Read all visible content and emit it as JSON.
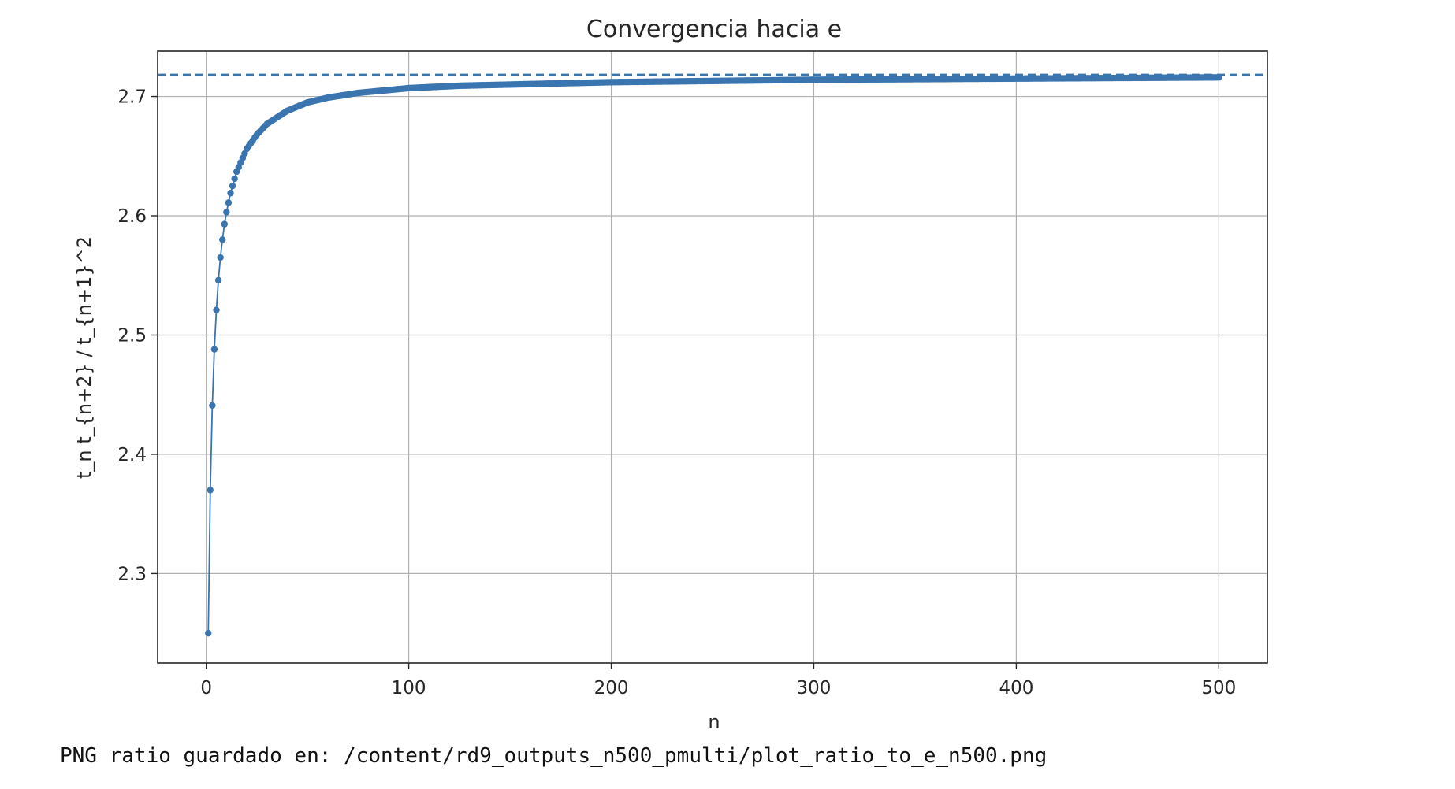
{
  "chart_data": {
    "type": "line",
    "title": "Convergencia hacia e",
    "xlabel": "n",
    "ylabel": "t_n t_{n+2} / t_{n+1}^2",
    "xlim": [
      -24,
      524
    ],
    "ylim": [
      2.225,
      2.738
    ],
    "xticks": [
      0,
      100,
      200,
      300,
      400,
      500
    ],
    "yticks": [
      2.3,
      2.4,
      2.5,
      2.6,
      2.7
    ],
    "grid": true,
    "legend": "none",
    "series": [
      {
        "color": "#3a75b0",
        "marker": "circle",
        "n_points": 500,
        "x_start": 1,
        "x_end": 500,
        "sample_x": [
          1,
          2,
          3,
          4,
          5,
          6,
          7,
          8,
          9,
          10,
          12,
          15,
          20,
          25,
          30,
          40,
          50,
          60,
          75,
          100,
          125,
          150,
          200,
          250,
          300,
          400,
          500
        ],
        "sample_y": [
          2.25,
          2.37,
          2.441,
          2.488,
          2.521,
          2.546,
          2.565,
          2.58,
          2.593,
          2.603,
          2.619,
          2.637,
          2.656,
          2.668,
          2.677,
          2.688,
          2.695,
          2.699,
          2.703,
          2.707,
          2.709,
          2.71,
          2.712,
          2.713,
          2.714,
          2.715,
          2.716
        ]
      }
    ],
    "reference_line": {
      "y": 2.718281828,
      "style": "dashed",
      "color": "#3a75b0"
    }
  },
  "output_text": "PNG ratio guardado en: /content/rd9_outputs_n500_pmulti/plot_ratio_to_e_n500.png"
}
